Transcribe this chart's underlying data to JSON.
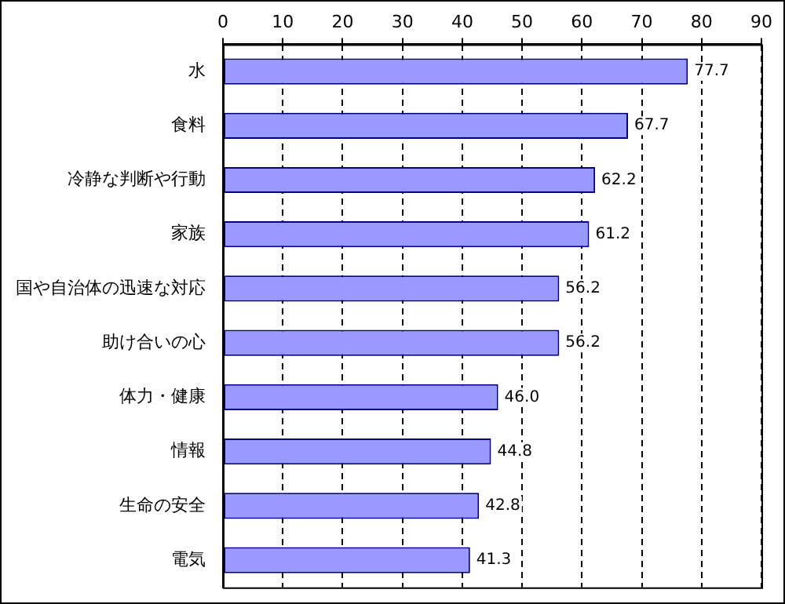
{
  "chart_data": {
    "type": "bar",
    "orientation": "horizontal",
    "categories": [
      "水",
      "食料",
      "冷静な判断や行動",
      "家族",
      "国や自治体の迅速な対応",
      "助け合いの心",
      "体力・健康",
      "情報",
      "生命の安全",
      "電気"
    ],
    "values": [
      77.7,
      67.7,
      62.2,
      61.2,
      56.2,
      56.2,
      46.0,
      44.8,
      42.8,
      41.3
    ],
    "value_labels": [
      "77.7",
      "67.7",
      "62.2",
      "61.2",
      "56.2",
      "56.2",
      "46.0",
      "44.8",
      "42.8",
      "41.3"
    ],
    "color": "#9999ff",
    "xlim": [
      0,
      90
    ],
    "xticks": [
      0,
      10,
      20,
      30,
      40,
      50,
      60,
      70,
      80,
      90
    ],
    "grid": "x",
    "legend": false
  }
}
